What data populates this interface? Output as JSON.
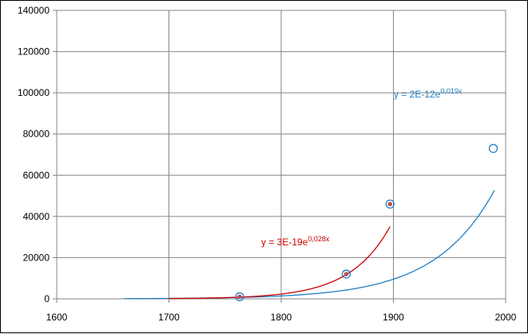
{
  "chart_data": {
    "type": "scatter",
    "xlim": [
      1600,
      2000
    ],
    "ylim": [
      0,
      140000
    ],
    "x_ticks": [
      1600,
      1700,
      1800,
      1900,
      2000
    ],
    "y_ticks": [
      0,
      20000,
      40000,
      60000,
      80000,
      100000,
      120000,
      140000
    ],
    "grid": true,
    "legend": "none",
    "series": [
      {
        "marker": "open-circle",
        "color": "#1f7fc4",
        "points": [
          [
            1763,
            1000
          ],
          [
            1858,
            12000
          ],
          [
            1897,
            46000
          ],
          [
            1989,
            73000
          ]
        ]
      },
      {
        "marker": "filled-dot",
        "color": "#c0504d",
        "points": [
          [
            1763,
            1000
          ],
          [
            1858,
            12000
          ],
          [
            1897,
            46000
          ]
        ]
      }
    ],
    "trendlines": [
      {
        "type": "exponential",
        "color": "#1f7fc4",
        "a": 2e-12,
        "b": 0.019,
        "x_range": [
          1660,
          1990
        ],
        "label": {
          "prefix": "y = 2E-12e",
          "exponent": "0,019x"
        }
      },
      {
        "type": "exponential",
        "color": "#cc0000",
        "a": 3e-19,
        "b": 0.028,
        "x_range": [
          1700,
          1897
        ],
        "label": {
          "prefix": "y = 3E-19e",
          "exponent": "0,028x"
        }
      }
    ]
  }
}
